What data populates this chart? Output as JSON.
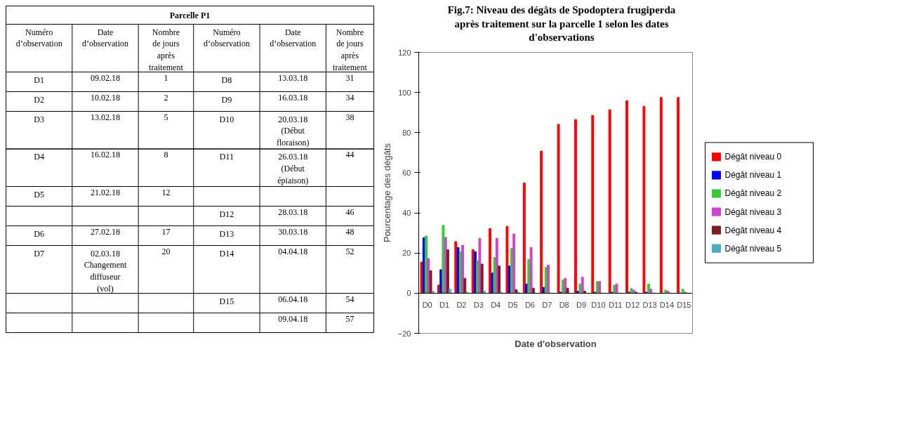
{
  "chart_data": [
    {
      "type": "other",
      "title": "Parcelle P1",
      "categories": [
        "Numéro\nd’observation",
        "Date\nd’observation",
        "Nombre\nde jours\naprès\ntraitement",
        "Numéro\nd’observation",
        "Date\nd’observation",
        "Nombre\nde jours\naprès\ntraitement"
      ],
      "cells": [
        [
          "D1",
          "09.02.18",
          "1",
          "D8",
          "13.03.18",
          "31"
        ],
        [
          "D2",
          "10.02.18",
          "2",
          "D9",
          "16.03.18",
          "34"
        ],
        [
          "D3",
          "13.02.18",
          "5",
          "D10",
          "20.03.18\n(Début\nfloraison)",
          "38"
        ],
        [
          "D4",
          "16.02.18",
          "8",
          "D11",
          "26.03.18\n(Début\népiaison)",
          "44"
        ],
        [
          "D5",
          "21.02.18",
          "12",
          null,
          null,
          null
        ],
        [
          null,
          null,
          null,
          "D12",
          "28.03.18",
          "46"
        ],
        [
          "D6",
          "27.02.18",
          "17",
          "D13",
          "30.03.18",
          "48"
        ],
        [
          "D7",
          "02.03.18\nChangement\ndiffuseur\n(vol)",
          "20",
          "D14",
          "04.04.18",
          "52"
        ],
        [
          null,
          null,
          null,
          "D15",
          "06.04.18",
          "54"
        ],
        [
          null,
          null,
          null,
          null,
          "09.04.18",
          "57"
        ]
      ]
    },
    {
      "type": "bar",
      "title": "Fig.7: Niveau des dégâts de Spodoptera frugiperda\naprès traitement sur la parcelle 1 selon les dates\nd'observations",
      "xlabel": "Date d'observation",
      "ylabel": "Pourcentage des dégâts",
      "categories": [
        "D0",
        "D1",
        "D2",
        "D3",
        "D4",
        "D5",
        "D6",
        "D7",
        "D8",
        "D9",
        "D10",
        "D11",
        "D12",
        "D13",
        "D14",
        "D15"
      ],
      "ylim": [
        -20,
        120
      ],
      "yticks": [
        -20,
        0,
        20,
        40,
        60,
        80,
        100,
        120
      ],
      "grid": false,
      "legend": "right",
      "series": [
        {
          "name": "Dégât niveau 0",
          "color": "#ff0000",
          "values": [
            15.5,
            4,
            25.7,
            21.7,
            32.2,
            33.3,
            54.9,
            70.8,
            84.1,
            86.5,
            88.6,
            91.4,
            95.9,
            93.1,
            97.5,
            97.5
          ]
        },
        {
          "name": "Dégât niveau 1",
          "color": "#0000ff",
          "values": [
            27.6,
            11.7,
            22.8,
            20.7,
            10,
            13.5,
            4.6,
            2.9,
            0.5,
            1,
            0.5,
            0.5,
            0.5,
            0.5,
            0,
            0
          ]
        },
        {
          "name": "Dégât niveau 2",
          "color": "#33cc33",
          "values": [
            28.5,
            33.8,
            20.7,
            16.1,
            17.8,
            22.3,
            16.8,
            12.9,
            6.7,
            4.6,
            5.8,
            4,
            2.3,
            4.5,
            1.5,
            2
          ]
        },
        {
          "name": "Dégât niveau 3",
          "color": "#cc44cc",
          "values": [
            17.3,
            27.8,
            23.9,
            27.3,
            27.3,
            29.5,
            22.8,
            14,
            7.4,
            7.9,
            5.8,
            4.6,
            1.5,
            2,
            1,
            0.5
          ]
        },
        {
          "name": "Dégât niveau 4",
          "color": "#7f1f1f",
          "values": [
            11.2,
            21.6,
            7.4,
            14.5,
            13.5,
            1.7,
            2.5,
            0,
            2.5,
            1,
            0,
            0,
            0.5,
            0,
            0,
            0
          ]
        },
        {
          "name": "Dégât niveau 5",
          "color": "#4bacc6",
          "values": [
            1,
            2,
            0.5,
            1,
            0.5,
            0.5,
            0,
            0,
            0,
            0,
            0,
            0,
            0,
            0,
            0,
            0
          ]
        }
      ]
    }
  ]
}
